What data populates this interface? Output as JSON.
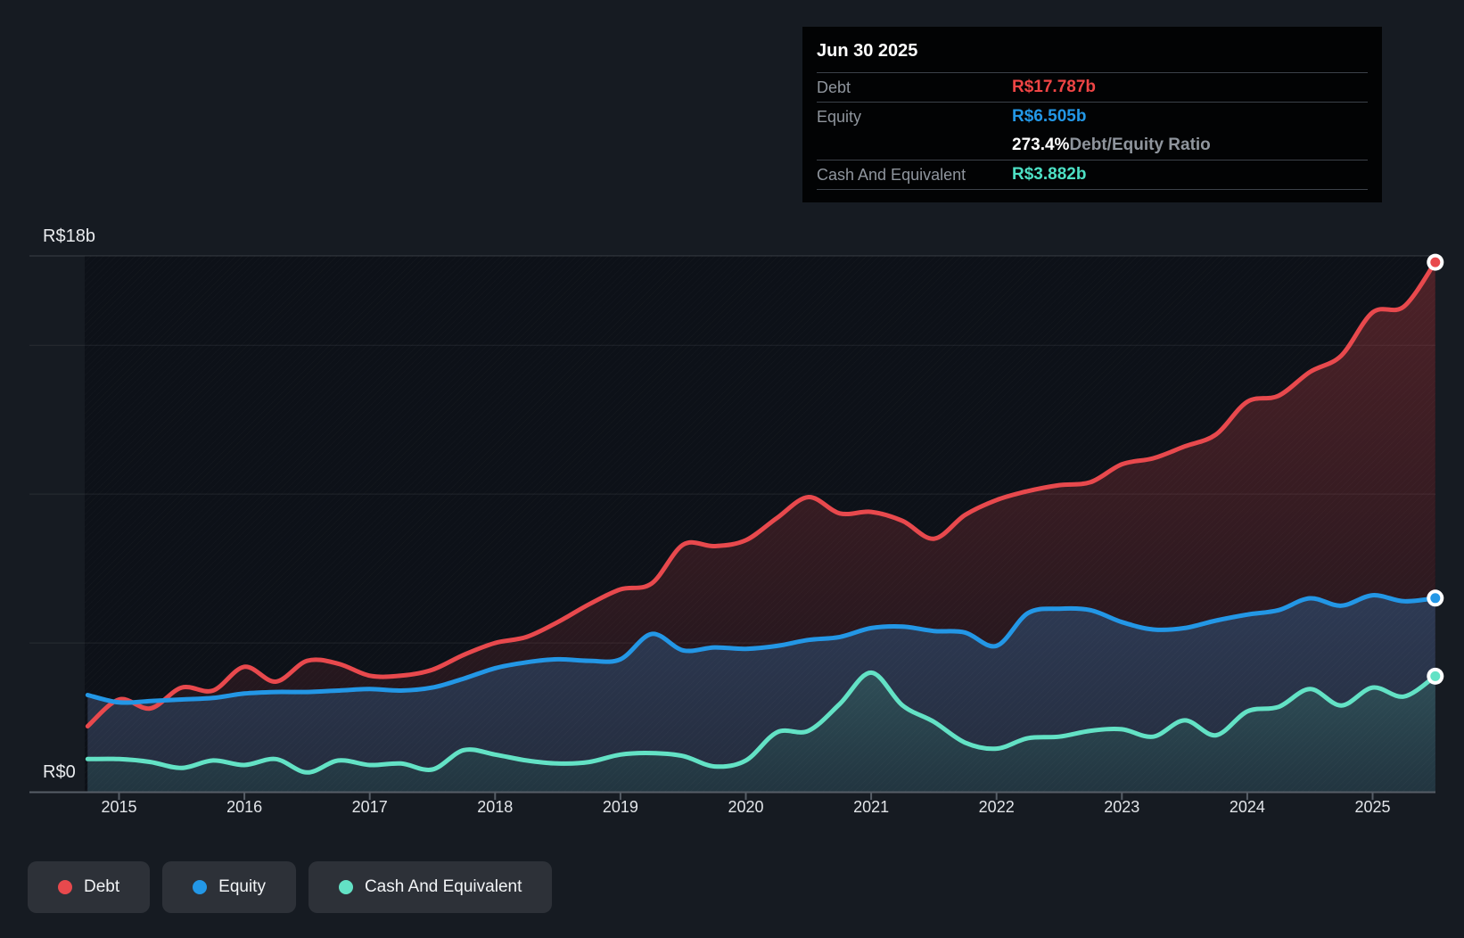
{
  "page": {
    "background": "#161b22",
    "plot_backdrop": "#0d1118"
  },
  "tooltip": {
    "date": "Jun 30 2025",
    "rows": [
      {
        "label": "Debt",
        "value": "R$17.787b",
        "value_color": "#ef4545",
        "divider": true
      },
      {
        "label": "Equity",
        "value": "R$6.505b",
        "value_color": "#2397e6",
        "divider": true
      },
      {
        "label": "",
        "value": "273.4%",
        "value_color": "#ffffff",
        "suffix": " Debt/Equity Ratio",
        "divider": false
      },
      {
        "label": "Cash And Equivalent",
        "value": "R$3.882b",
        "value_color": "#4de0c4",
        "divider": true
      }
    ]
  },
  "legend": [
    {
      "label": "Debt",
      "color": "#e8494d"
    },
    {
      "label": "Equity",
      "color": "#2397e6"
    },
    {
      "label": "Cash And Equivalent",
      "color": "#63e2c5"
    }
  ],
  "chart_data": {
    "type": "area",
    "title": "Debt to Equity History",
    "xlabel": "",
    "ylabel": "",
    "ylim": [
      0,
      18
    ],
    "xlim": [
      2014.28,
      2025.5
    ],
    "grid": true,
    "y_gridline_values_b": [
      18,
      15,
      10,
      5
    ],
    "y_axis_labels": [
      {
        "text": "R$18b",
        "value": 18
      },
      {
        "text": "R$0",
        "value": 0
      }
    ],
    "x_ticks": [
      2015,
      2016,
      2017,
      2018,
      2019,
      2020,
      2021,
      2022,
      2023,
      2024,
      2025
    ],
    "x": [
      2014.75,
      2015,
      2015.25,
      2015.5,
      2015.75,
      2016,
      2016.25,
      2016.5,
      2016.75,
      2017,
      2017.25,
      2017.5,
      2017.75,
      2018,
      2018.25,
      2018.5,
      2018.75,
      2019,
      2019.25,
      2019.5,
      2019.75,
      2020,
      2020.25,
      2020.5,
      2020.75,
      2021,
      2021.25,
      2021.5,
      2021.75,
      2022,
      2022.25,
      2022.5,
      2022.75,
      2023,
      2023.25,
      2023.5,
      2023.75,
      2024,
      2024.25,
      2024.5,
      2024.75,
      2025,
      2025.25,
      2025.5
    ],
    "series": [
      {
        "name": "Debt",
        "color": "#e8494d",
        "unit": "R$ billions",
        "values": [
          2.2,
          3.1,
          2.8,
          3.5,
          3.4,
          4.2,
          3.7,
          4.4,
          4.3,
          3.9,
          3.9,
          4.1,
          4.6,
          5.0,
          5.2,
          5.7,
          6.3,
          6.8,
          7.0,
          8.3,
          8.25,
          8.45,
          9.2,
          9.9,
          9.35,
          9.4,
          9.1,
          8.5,
          9.3,
          9.8,
          10.1,
          10.3,
          10.4,
          11.0,
          11.2,
          11.6,
          12.0,
          13.1,
          13.3,
          14.1,
          14.65,
          16.1,
          16.3,
          17.787
        ]
      },
      {
        "name": "Equity",
        "color": "#2397e6",
        "unit": "R$ billions",
        "values": [
          3.25,
          3.0,
          3.05,
          3.1,
          3.15,
          3.3,
          3.35,
          3.35,
          3.4,
          3.45,
          3.4,
          3.5,
          3.8,
          4.15,
          4.35,
          4.45,
          4.4,
          4.45,
          5.3,
          4.75,
          4.85,
          4.8,
          4.9,
          5.1,
          5.2,
          5.5,
          5.55,
          5.4,
          5.35,
          4.9,
          6.0,
          6.15,
          6.1,
          5.7,
          5.45,
          5.5,
          5.75,
          5.95,
          6.1,
          6.5,
          6.25,
          6.6,
          6.4,
          6.505
        ]
      },
      {
        "name": "Cash And Equivalent",
        "color": "#63e2c5",
        "unit": "R$ billions",
        "values": [
          1.1,
          1.1,
          1.0,
          0.8,
          1.05,
          0.9,
          1.1,
          0.65,
          1.05,
          0.9,
          0.95,
          0.75,
          1.4,
          1.25,
          1.05,
          0.95,
          1.0,
          1.25,
          1.3,
          1.2,
          0.85,
          1.05,
          2.0,
          2.05,
          2.95,
          4.0,
          2.9,
          2.35,
          1.65,
          1.45,
          1.8,
          1.85,
          2.05,
          2.1,
          1.85,
          2.4,
          1.9,
          2.7,
          2.85,
          3.45,
          2.9,
          3.5,
          3.2,
          3.882
        ]
      }
    ],
    "legend_position": "bottom-left",
    "colors": {
      "debt_fill_top": "rgba(230,73,77,0.30)",
      "debt_fill_bottom": "rgba(230,73,77,0.06)",
      "equity_fill_top": "#2f3c57",
      "equity_fill_bottom": "#242c3d",
      "cash_fill_top": "#305059",
      "cash_fill_bottom": "#223540",
      "gridline": "rgba(255,255,255,0.08)",
      "gridline_top": "rgba(255,255,255,0.16)",
      "axis": "#575e67",
      "y_label_text": "#e9ebee",
      "x_label_text": "#e2e5e9"
    }
  }
}
